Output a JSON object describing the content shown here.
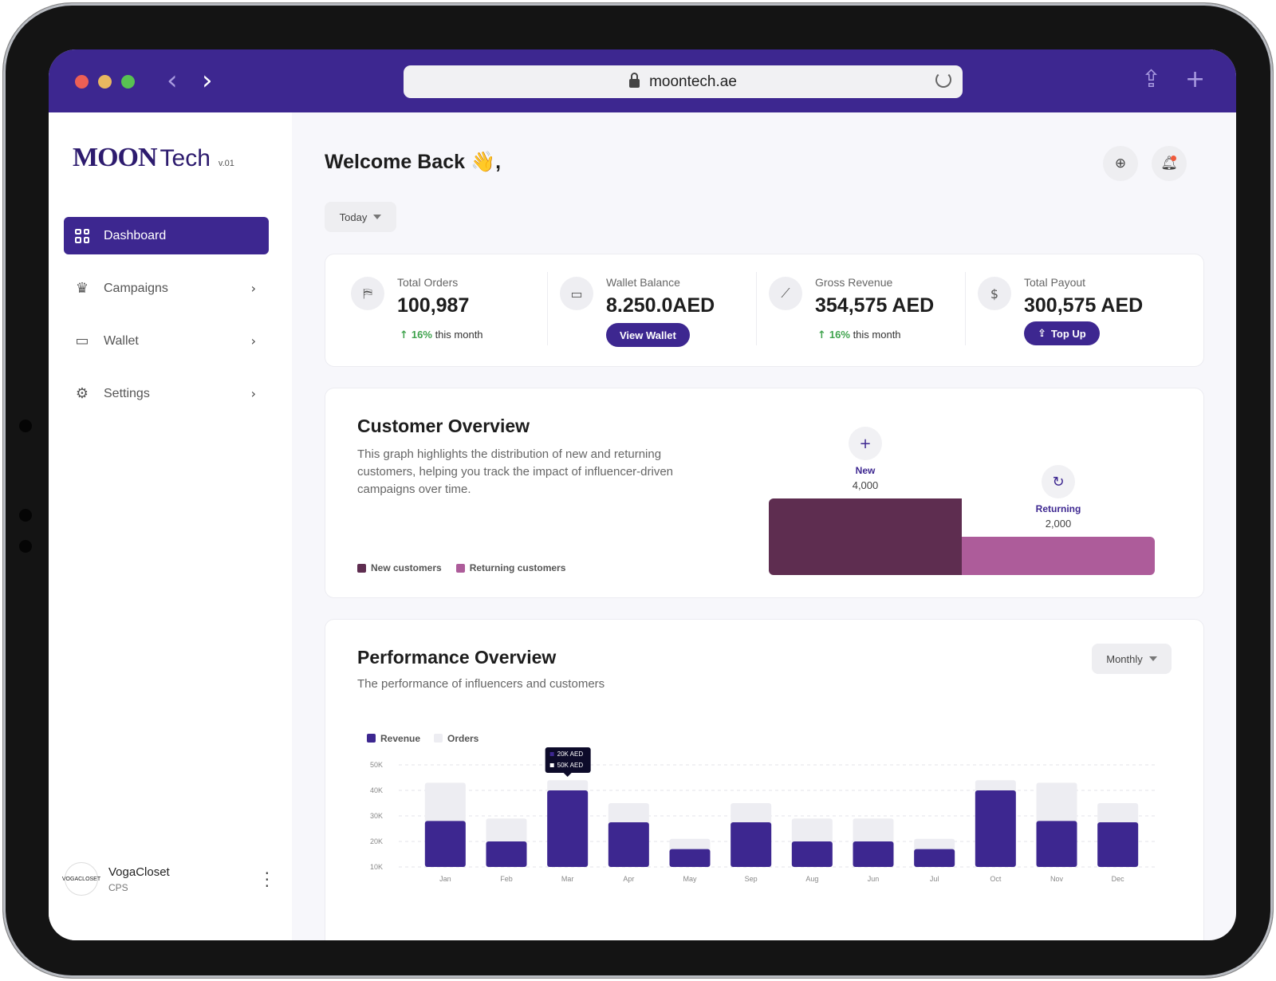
{
  "browser": {
    "url": "moontech.ae"
  },
  "brand": {
    "name_bold": "MOON",
    "name_light": "Tech",
    "version": "v.01"
  },
  "sidebar": {
    "items": [
      {
        "label": "Dashboard",
        "icon": "grid-icon",
        "active": true
      },
      {
        "label": "Campaigns",
        "icon": "crown-icon"
      },
      {
        "label": "Wallet",
        "icon": "wallet-icon"
      },
      {
        "label": "Settings",
        "icon": "gear-icon"
      }
    ],
    "user": {
      "name": "VogaCloset",
      "role": "CPS",
      "avatar_text": "VOGACLOSET"
    }
  },
  "header": {
    "welcome": "Welcome Back 👋,",
    "period": "Today"
  },
  "stats": [
    {
      "label": "Total Orders",
      "value": "100,987",
      "trend_pct": "16%",
      "trend_text": "this month",
      "icon": "tag-icon"
    },
    {
      "label": "Wallet Balance",
      "value": "8.250.0AED",
      "button": "View Wallet",
      "icon": "wallet-icon"
    },
    {
      "label": "Gross Revenue",
      "value": "354,575 AED",
      "trend_pct": "16%",
      "trend_text": "this month",
      "icon": "chart-icon"
    },
    {
      "label": "Total Payout",
      "value": "300,575 AED",
      "button": "Top Up",
      "icon": "dollar-icon"
    }
  ],
  "customer_overview": {
    "title": "Customer Overview",
    "description": "This graph highlights the distribution of new and returning customers, helping you track the impact of influencer-driven campaigns over time.",
    "legend": [
      "New customers",
      "Returning customers"
    ],
    "colors": {
      "new": "#5e2d50",
      "returning": "#ad5c9a"
    },
    "segments": [
      {
        "name": "New",
        "value": "4,000",
        "amount": 4000
      },
      {
        "name": "Returning",
        "value": "2,000",
        "amount": 2000
      }
    ]
  },
  "performance": {
    "title": "Performance Overview",
    "subtitle": "The performance of influencers and customers",
    "period": "Monthly",
    "tooltip": [
      "20K AED",
      "50K AED"
    ]
  },
  "chart_data": {
    "type": "bar",
    "categories": [
      "Jan",
      "Feb",
      "Mar",
      "Apr",
      "May",
      "Sep",
      "Aug",
      "Jun",
      "Jul",
      "Oct",
      "Nov",
      "Dec"
    ],
    "series": [
      {
        "name": "Revenue",
        "color": "#3d2790",
        "values": [
          28,
          20,
          40,
          27.5,
          17,
          27.5,
          20,
          20,
          17,
          40,
          28,
          27.5
        ]
      },
      {
        "name": "Orders",
        "color": "#ededf2",
        "values": [
          43,
          29,
          44,
          35,
          21,
          35,
          29,
          29,
          21,
          44,
          43,
          35
        ]
      }
    ],
    "yticks": [
      "10K",
      "20K",
      "30K",
      "40K",
      "50K"
    ],
    "ylim": [
      10,
      50
    ]
  }
}
